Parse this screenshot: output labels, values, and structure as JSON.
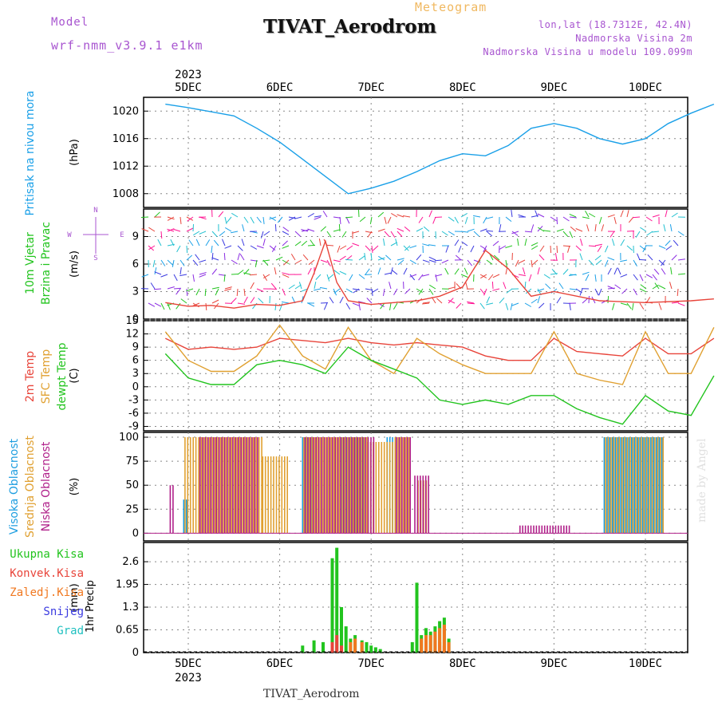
{
  "header": {
    "model_label": "Model",
    "model_name": "wrf-nmm_v3.9.1 e1km",
    "product": "Meteogram",
    "station": "TIVAT_Aerodrom",
    "coords": "lon,lat (18.7312E, 42.4N)",
    "elevation": "Nadmorska Visina 2m",
    "model_elevation": "Nadmorska Visina u modelu 109.099m",
    "credit": "made by Angel",
    "footer": "TIVAT_Aerodrom"
  },
  "colors": {
    "pressure": "#1aa0e8",
    "temp2m": "#e8443a",
    "sfc_temp": "#e0a030",
    "dewpoint": "#22c41e",
    "high_cloud": "#1e9ee0",
    "mid_cloud": "#e0a030",
    "low_cloud": "#b0208a",
    "total_precip": "#22c41e",
    "conv_precip": "#e8443a",
    "frozen_precip": "#f07820",
    "snow": "#3a3ae0",
    "hail": "#20c0c0",
    "label_purple": "#a855d0"
  },
  "chart_data": [
    {
      "type": "line",
      "ylabel_left": "Pritisak na nivou mora",
      "unit": "(hPa)",
      "x_unit": "days since 2023-12-04 18UTC",
      "yticks": [
        "1008",
        "1012",
        "1016",
        "1020"
      ],
      "ylim": [
        1006,
        1022
      ],
      "series": [
        {
          "color": "#1aa0e8",
          "x": [
            0.5,
            1.0,
            1.5,
            2.0,
            2.5,
            3.0,
            3.5,
            4.0,
            4.5,
            5.0,
            5.5,
            6.0,
            6.5,
            7.0,
            7.5,
            8.0,
            8.5,
            9.0,
            9.5,
            10.0,
            10.5,
            11.0,
            11.5,
            12.0,
            12.5
          ],
          "y": [
            1021.0,
            1020.5,
            1019.9,
            1019.3,
            1017.5,
            1015.5,
            1013.0,
            1010.5,
            1008.0,
            1008.8,
            1009.8,
            1011.2,
            1012.8,
            1013.8,
            1013.5,
            1015.0,
            1017.5,
            1018.2,
            1017.5,
            1016.0,
            1015.2,
            1016.0,
            1018.2,
            1019.7,
            1021.0
          ]
        }
      ]
    },
    {
      "type": "line",
      "ylabel_left": "10m Vjetar",
      "ylabel_left2": "Brzina i Pravac",
      "unit": "(m/s)",
      "yticks": [
        "0",
        "3",
        "6",
        "9"
      ],
      "ylim": [
        0,
        12
      ],
      "compass": [
        "N",
        "W",
        "E",
        "S"
      ],
      "series": [
        {
          "color": "#e8443a",
          "x": [
            0.5,
            1.0,
            1.5,
            2.0,
            2.5,
            3.0,
            3.5,
            3.75,
            4.0,
            4.25,
            4.5,
            5.0,
            5.5,
            6.0,
            6.5,
            7.0,
            7.5,
            8.0,
            8.5,
            9.0,
            10.0,
            11.0,
            12.0,
            12.5
          ],
          "y": [
            1.8,
            1.4,
            1.5,
            1.2,
            1.6,
            1.5,
            2.0,
            5.0,
            8.5,
            4.0,
            2.0,
            1.6,
            1.8,
            2.0,
            2.5,
            3.5,
            7.5,
            5.5,
            2.5,
            3.0,
            2.0,
            1.8,
            2.0,
            2.2
          ]
        }
      ]
    },
    {
      "type": "line",
      "ylabel_left": "2m Temp",
      "ylabel_left2": "SFC Temp",
      "ylabel_left3": "dewpt Temp",
      "unit": "(C)",
      "yticks": [
        "-9",
        "-6",
        "-3",
        "0",
        "3",
        "6",
        "9",
        "12",
        "15"
      ],
      "ylim": [
        -10,
        15
      ],
      "series": [
        {
          "name": "2m Temp",
          "color": "#e8443a",
          "x": [
            0.5,
            1.0,
            1.5,
            2.0,
            2.5,
            3.0,
            3.5,
            4.0,
            4.5,
            5.0,
            5.5,
            6.0,
            6.5,
            7.0,
            7.5,
            8.0,
            8.5,
            9.0,
            9.5,
            10.0,
            10.5,
            11.0,
            11.5,
            12.0,
            12.5
          ],
          "y": [
            11.0,
            8.5,
            9.0,
            8.5,
            9.0,
            11.0,
            10.5,
            10.0,
            11.0,
            10.0,
            9.5,
            10.0,
            9.5,
            9.0,
            7.0,
            6.0,
            6.0,
            11.0,
            8.0,
            7.5,
            7.0,
            11.0,
            7.5,
            7.5,
            11.0
          ]
        },
        {
          "name": "SFC Temp",
          "color": "#e0a030",
          "x": [
            0.5,
            1.0,
            1.5,
            2.0,
            2.5,
            3.0,
            3.5,
            4.0,
            4.5,
            5.0,
            5.5,
            6.0,
            6.5,
            7.0,
            7.5,
            8.0,
            8.5,
            9.0,
            9.5,
            10.0,
            10.5,
            11.0,
            11.5,
            12.0,
            12.5
          ],
          "y": [
            12.5,
            6.0,
            3.5,
            3.5,
            7.0,
            14.0,
            7.0,
            4.0,
            13.5,
            6.0,
            3.0,
            11.0,
            7.5,
            5.0,
            3.0,
            3.0,
            3.0,
            12.5,
            3.0,
            1.5,
            0.5,
            12.5,
            3.0,
            3.0,
            13.5
          ]
        },
        {
          "name": "dewpt Temp",
          "color": "#22c41e",
          "x": [
            0.5,
            1.0,
            1.5,
            2.0,
            2.5,
            3.0,
            3.5,
            4.0,
            4.5,
            5.0,
            5.5,
            6.0,
            6.5,
            7.0,
            7.5,
            8.0,
            8.5,
            9.0,
            9.5,
            10.0,
            10.5,
            11.0,
            11.5,
            12.0,
            12.5
          ],
          "y": [
            7.5,
            2.0,
            0.5,
            0.5,
            5.0,
            6.0,
            5.0,
            3.0,
            9.0,
            6.0,
            4.0,
            2.0,
            -3.0,
            -4.0,
            -3.0,
            -4.0,
            -2.0,
            -2.0,
            -5.0,
            -7.0,
            -8.5,
            -2.0,
            -5.5,
            -6.5,
            2.5
          ]
        }
      ]
    },
    {
      "type": "bar",
      "ylabel_left": "Visoka Oblacnost",
      "ylabel_left2": "Srednja Oblacnost",
      "ylabel_left3": "Niska Oblacnost",
      "unit": "(%)",
      "yticks": [
        "0",
        "25",
        "50",
        "75",
        "100"
      ],
      "ylim": [
        0,
        100
      ],
      "series": [
        {
          "name": "Visoka Oblacnost",
          "color": "#1e9ee0",
          "segments": [
            [
              0.9,
              1.0,
              35
            ],
            [
              3.5,
              3.7,
              100
            ],
            [
              4.35,
              4.85,
              100
            ],
            [
              5.35,
              5.55,
              100
            ],
            [
              10.1,
              11.4,
              100
            ]
          ]
        },
        {
          "name": "Srednja Oblacnost",
          "color": "#e0a030",
          "segments": [
            [
              0.9,
              2.6,
              100
            ],
            [
              2.6,
              3.2,
              80
            ],
            [
              3.5,
              4.9,
              100
            ],
            [
              4.9,
              5.5,
              95
            ],
            [
              5.5,
              5.8,
              100
            ],
            [
              6.0,
              6.2,
              55
            ],
            [
              10.1,
              11.4,
              100
            ]
          ]
        },
        {
          "name": "Niska Oblacnost",
          "color": "#b0208a",
          "segments": [
            [
              0.55,
              0.65,
              50
            ],
            [
              1.2,
              2.5,
              100
            ],
            [
              3.5,
              5.0,
              100
            ],
            [
              5.5,
              5.8,
              100
            ],
            [
              5.9,
              6.2,
              60
            ],
            [
              8.2,
              9.3,
              8
            ]
          ]
        }
      ]
    },
    {
      "type": "bar",
      "ylabel_left": "1hr Precip",
      "unit": "(mm)",
      "yticks": [
        "0",
        "0.65",
        "1.3",
        "1.95",
        "2.6"
      ],
      "ylim": [
        0,
        3
      ],
      "legend": [
        "Ukupna Kisa",
        "Konvek.Kisa",
        "Zaledj.Kisa",
        "Snijeg",
        "Grad"
      ],
      "series": [
        {
          "name": "Ukupna Kisa",
          "color": "#22c41e",
          "x": [
            3.5,
            3.75,
            3.95,
            4.15,
            4.25,
            4.35,
            4.45,
            4.55,
            4.65,
            4.8,
            4.9,
            5.0,
            5.1,
            5.2,
            5.9,
            6.0,
            6.1,
            6.2,
            6.3,
            6.4,
            6.5,
            6.6,
            6.7
          ],
          "y": [
            0.2,
            0.35,
            0.3,
            2.7,
            3.0,
            1.3,
            0.75,
            0.4,
            0.5,
            0.35,
            0.3,
            0.2,
            0.15,
            0.1,
            0.3,
            2.0,
            0.5,
            0.7,
            0.6,
            0.75,
            0.9,
            1.0,
            0.4
          ]
        },
        {
          "name": "Konvek.Kisa",
          "color": "#e8443a",
          "x": [
            4.15,
            4.25,
            4.35,
            6.5,
            6.6
          ],
          "y": [
            0.3,
            0.5,
            0.2,
            0.3,
            0.2
          ]
        },
        {
          "name": "Zaledj.Kisa",
          "color": "#f07820",
          "x": [
            4.55,
            4.65,
            4.8,
            6.1,
            6.2,
            6.3,
            6.4,
            6.5,
            6.6,
            6.7
          ],
          "y": [
            0.3,
            0.4,
            0.3,
            0.4,
            0.5,
            0.5,
            0.6,
            0.7,
            0.8,
            0.3
          ]
        }
      ]
    }
  ],
  "x_axis": {
    "year": "2023",
    "days": [
      "5DEC",
      "6DEC",
      "7DEC",
      "8DEC",
      "9DEC",
      "10DEC"
    ]
  }
}
